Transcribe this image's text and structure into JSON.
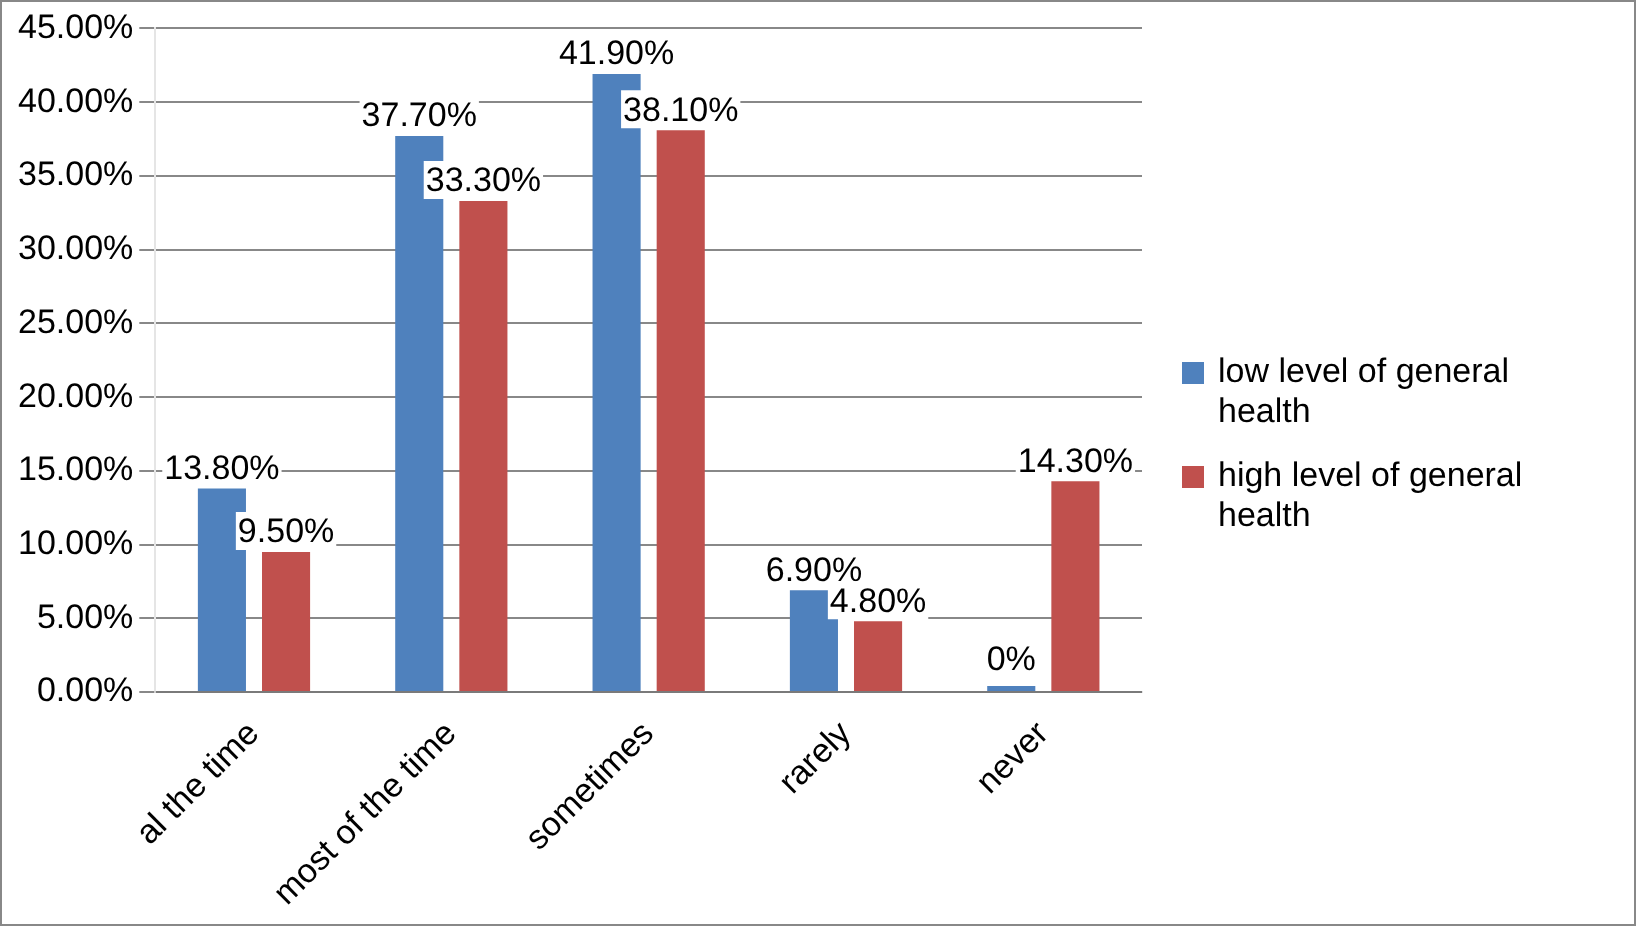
{
  "chart_data": {
    "type": "bar",
    "categories": [
      "al the time",
      "most of the time",
      "sometimes",
      "rarely",
      "never"
    ],
    "series": [
      {
        "name": "low level of general health",
        "color": "#4f81bd",
        "values": [
          13.8,
          37.7,
          41.9,
          6.9,
          0
        ],
        "value_labels": [
          "13.80%",
          "37.70%",
          "41.90%",
          "6.90%",
          "0%"
        ]
      },
      {
        "name": "high level of general health",
        "color": "#c0504d",
        "values": [
          9.5,
          33.3,
          38.1,
          4.8,
          14.3
        ],
        "value_labels": [
          "9.50%",
          "33.30%",
          "38.10%",
          "4.80%",
          "14.30%"
        ]
      }
    ],
    "ylim": [
      0,
      45
    ],
    "yticks": [
      {
        "value": 0,
        "label": "0.00%"
      },
      {
        "value": 5,
        "label": "5.00%"
      },
      {
        "value": 10,
        "label": "10.00%"
      },
      {
        "value": 15,
        "label": "15.00%"
      },
      {
        "value": 20,
        "label": "20.00%"
      },
      {
        "value": 25,
        "label": "25.00%"
      },
      {
        "value": 30,
        "label": "30.00%"
      },
      {
        "value": 35,
        "label": "35.00%"
      },
      {
        "value": 40,
        "label": "40.00%"
      },
      {
        "value": 45,
        "label": "45.00%"
      }
    ],
    "grid": "y",
    "legend": "right"
  }
}
